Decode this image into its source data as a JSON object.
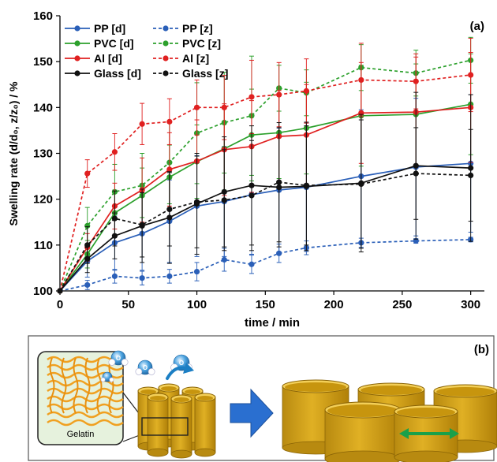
{
  "chart_data": {
    "type": "line",
    "panel_label": "(a)",
    "xlabel": "time / min",
    "ylabel": "Swelling rate (d/d₀, z/z₀) / %",
    "xlim": [
      0,
      310
    ],
    "ylim": [
      100,
      160
    ],
    "xticks": [
      0,
      50,
      100,
      150,
      200,
      250,
      300
    ],
    "yticks": [
      100,
      110,
      120,
      130,
      140,
      150,
      160
    ],
    "grid": false,
    "legend_position": "top-left",
    "x": [
      0,
      20,
      40,
      60,
      80,
      100,
      120,
      140,
      160,
      180,
      220,
      260,
      300
    ],
    "series": [
      {
        "name": "PP [d]",
        "color": "#2a5fb8",
        "dashed": false,
        "values": [
          100,
          106.5,
          110.5,
          112.5,
          115.2,
          118.5,
          119.5,
          121.0,
          122.0,
          122.6,
          125.0,
          127.0,
          127.8
        ],
        "errors": [
          0,
          3.5,
          6,
          8,
          9,
          11,
          12,
          13,
          13.5,
          14,
          14.5,
          15,
          15
        ]
      },
      {
        "name": "PP [z]",
        "color": "#2a5fb8",
        "dashed": true,
        "values": [
          100,
          101.3,
          103.2,
          102.8,
          103.2,
          104.2,
          106.8,
          105.8,
          108.2,
          109.4,
          110.5,
          110.9,
          111.2
        ],
        "errors": [
          0,
          1,
          1.5,
          1.5,
          1.5,
          2,
          2.5,
          2,
          2,
          1.5,
          1,
          0.5,
          0.5
        ]
      },
      {
        "name": "PVC [d]",
        "color": "#2ca02c",
        "dashed": false,
        "values": [
          100,
          108.0,
          117.0,
          120.8,
          124.8,
          128.2,
          131.0,
          134.0,
          134.5,
          135.5,
          138.2,
          138.5,
          140.7
        ],
        "errors": [
          0,
          3,
          5,
          6,
          7,
          8,
          9,
          10,
          10,
          10,
          11,
          11,
          11
        ]
      },
      {
        "name": "PVC [z]",
        "color": "#2ca02c",
        "dashed": true,
        "values": [
          100,
          114.2,
          121.6,
          123.0,
          128.0,
          134.4,
          136.7,
          138.2,
          144.2,
          143.2,
          148.7,
          147.5,
          150.3
        ],
        "errors": [
          0,
          4,
          6,
          7,
          9,
          11,
          11,
          13,
          5,
          5,
          5,
          5,
          5
        ]
      },
      {
        "name": "Al [d]",
        "color": "#e02020",
        "dashed": false,
        "values": [
          100,
          109.5,
          118.5,
          122.0,
          126.5,
          128.3,
          130.8,
          131.5,
          133.7,
          134.0,
          138.8,
          139.0,
          140.0
        ],
        "errors": [
          0,
          3,
          5,
          7,
          8,
          9,
          10,
          10,
          10,
          11,
          11,
          12,
          12
        ]
      },
      {
        "name": "Al [z]",
        "color": "#e02020",
        "dashed": true,
        "values": [
          100,
          125.6,
          130.3,
          136.4,
          136.9,
          140.0,
          140.0,
          142.3,
          142.8,
          143.6,
          146.0,
          145.7,
          147.1
        ],
        "errors": [
          0,
          3,
          4,
          4.5,
          5,
          6,
          7,
          8,
          7,
          7,
          8,
          6,
          8
        ]
      },
      {
        "name": "Glass [d]",
        "color": "#111111",
        "dashed": false,
        "values": [
          100,
          107.0,
          112.0,
          114.2,
          116.0,
          119.0,
          121.6,
          123.0,
          122.6,
          122.8,
          123.5,
          127.3,
          126.8
        ],
        "errors": [
          0,
          3,
          5,
          8,
          10,
          11,
          12,
          13,
          13,
          14,
          15,
          16,
          16
        ]
      },
      {
        "name": "Glass [z]",
        "color": "#111111",
        "dashed": true,
        "values": [
          100,
          110.0,
          115.8,
          114.4,
          117.8,
          119.4,
          119.8,
          120.8,
          123.7,
          123.0,
          123.3,
          125.6,
          125.2
        ],
        "errors": [
          0,
          4,
          6,
          7,
          8,
          10,
          11,
          12,
          13,
          13,
          14,
          10,
          10
        ]
      }
    ]
  },
  "panel_b": {
    "label": "(b)",
    "inset_label": "Gelatin",
    "water_atoms": [
      "O",
      "H",
      "H"
    ]
  }
}
